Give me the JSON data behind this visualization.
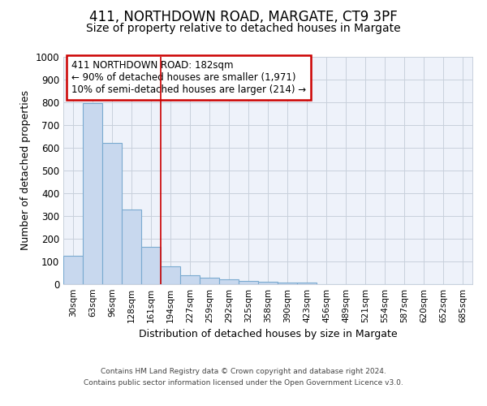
{
  "title1": "411, NORTHDOWN ROAD, MARGATE, CT9 3PF",
  "title2": "Size of property relative to detached houses in Margate",
  "xlabel": "Distribution of detached houses by size in Margate",
  "ylabel": "Number of detached properties",
  "bar_labels": [
    "30sqm",
    "63sqm",
    "96sqm",
    "128sqm",
    "161sqm",
    "194sqm",
    "227sqm",
    "259sqm",
    "292sqm",
    "325sqm",
    "358sqm",
    "390sqm",
    "423sqm",
    "456sqm",
    "489sqm",
    "521sqm",
    "554sqm",
    "587sqm",
    "620sqm",
    "652sqm",
    "685sqm"
  ],
  "bar_values": [
    125,
    795,
    620,
    330,
    163,
    78,
    40,
    27,
    22,
    14,
    10,
    8,
    8,
    0,
    0,
    0,
    0,
    0,
    0,
    0,
    0
  ],
  "bar_color": "#c8d8ee",
  "bar_edge_color": "#7aaad0",
  "bar_linewidth": 0.8,
  "vline_x": 5.0,
  "vline_color": "#cc0000",
  "annotation_box_text": "411 NORTHDOWN ROAD: 182sqm\n← 90% of detached houses are smaller (1,971)\n10% of semi-detached houses are larger (214) →",
  "annotation_box_color": "#cc0000",
  "ylim": [
    0,
    1000
  ],
  "yticks": [
    0,
    100,
    200,
    300,
    400,
    500,
    600,
    700,
    800,
    900,
    1000
  ],
  "grid_color": "#c8d0dc",
  "background_color": "#eef2fa",
  "footer_line1": "Contains HM Land Registry data © Crown copyright and database right 2024.",
  "footer_line2": "Contains public sector information licensed under the Open Government Licence v3.0.",
  "title1_fontsize": 12,
  "title2_fontsize": 10,
  "xlabel_fontsize": 9,
  "ylabel_fontsize": 9,
  "annot_fontsize": 8.5,
  "footer_fontsize": 6.5
}
